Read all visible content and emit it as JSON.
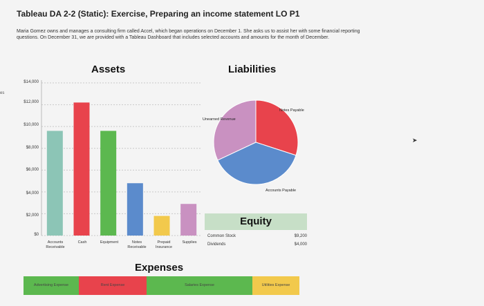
{
  "title": "Tableau DA 2-2 (Static): Exercise, Preparing an income statement LO P1",
  "intro": "Maria Gomez owns and manages a consulting firm called Accel, which began operations on December 1. She asks us to assist her with some financial reporting questions. On December 31, we are provided with a Tableau Dashboard that includes selected accounts and amounts for the month of December.",
  "side_mark": "es",
  "cursor_icon": "pointer-arrow-icon",
  "chart_data": [
    {
      "type": "bar",
      "title": "Assets",
      "categories": [
        "Accounts Receivable",
        "Cash",
        "Equipment",
        "Notes Receivable",
        "Prepaid Insurance",
        "Supplies"
      ],
      "values": [
        9600,
        12200,
        9600,
        4800,
        1800,
        2900
      ],
      "colors": [
        "#8cc5b6",
        "#e8434c",
        "#5cb84f",
        "#5b8bcc",
        "#f2c94c",
        "#c991c1"
      ],
      "y_ticks": [
        "$14,000",
        "$12,000",
        "$10,000",
        "$8,000",
        "$6,000",
        "$4,000",
        "$2,000",
        "$0"
      ],
      "ylim": [
        0,
        14000
      ],
      "grid": true
    },
    {
      "type": "pie",
      "title": "Liabilities",
      "slices": [
        {
          "label": "Notes Payable",
          "value": 30,
          "color": "#e8434c"
        },
        {
          "label": "Accounts Payable",
          "value": 38,
          "color": "#5b8bcc"
        },
        {
          "label": "Unearned Revenue",
          "value": 32,
          "color": "#c991c1"
        }
      ]
    },
    {
      "type": "table",
      "title": "Equity",
      "rows": [
        {
          "label": "Common Stock",
          "value": "$9,200"
        },
        {
          "label": "Dividends",
          "value": "$4,000"
        }
      ]
    },
    {
      "type": "bar",
      "title": "Expenses",
      "orientation": "horizontal-stacked",
      "segments": [
        {
          "label": "Advertising Expense",
          "value": 1,
          "color": "#5cb84f"
        },
        {
          "label": "Rent Expense",
          "value": 2,
          "color": "#e8434c"
        },
        {
          "label": "Salaries Expense",
          "value": 2,
          "color": "#5cb84f"
        },
        {
          "label": "Utilities Expense",
          "value": 1,
          "color": "#f2c94c"
        }
      ]
    }
  ]
}
